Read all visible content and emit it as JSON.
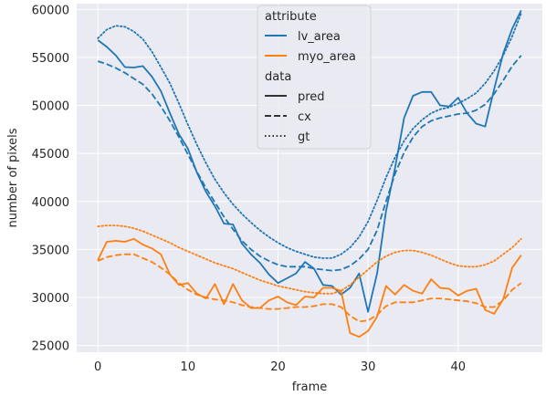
{
  "chart_data": {
    "type": "line",
    "xlabel": "frame",
    "ylabel": "number of pixels",
    "xlim": [
      -2.35,
      49.35
    ],
    "ylim": [
      24300,
      60600
    ],
    "xticks": [
      0,
      10,
      20,
      30,
      40
    ],
    "yticks": [
      25000,
      30000,
      35000,
      40000,
      45000,
      50000,
      55000,
      60000
    ],
    "grid": true,
    "background": "#eaeaf2",
    "legend": {
      "placement": "upper-center",
      "sections": [
        {
          "title": "attribute",
          "entries": [
            {
              "label": "lv_area",
              "color": "#1f77b4",
              "style": "solid"
            },
            {
              "label": "myo_area",
              "color": "#ff7f0e",
              "style": "solid"
            }
          ]
        },
        {
          "title": "data",
          "entries": [
            {
              "label": "pred",
              "color": "#333333",
              "style": "solid"
            },
            {
              "label": "cx",
              "color": "#333333",
              "style": "dashed"
            },
            {
              "label": "gt",
              "color": "#333333",
              "style": "dotted"
            }
          ]
        }
      ]
    },
    "x": [
      0,
      1,
      2,
      3,
      4,
      5,
      6,
      7,
      8,
      9,
      10,
      11,
      12,
      13,
      14,
      15,
      16,
      17,
      18,
      19,
      20,
      21,
      22,
      23,
      24,
      25,
      26,
      27,
      28,
      29,
      30,
      31,
      32,
      33,
      34,
      35,
      36,
      37,
      38,
      39,
      40,
      41,
      42,
      43,
      44,
      45,
      46,
      47
    ],
    "series": [
      {
        "attribute": "lv_area",
        "data": "pred",
        "color": "#1f77b4",
        "style": "solid",
        "values": [
          56800,
          56100,
          55200,
          54000,
          53950,
          54100,
          53000,
          51500,
          49200,
          47000,
          45500,
          43000,
          41000,
          39500,
          37700,
          37600,
          35600,
          34500,
          33600,
          32400,
          31500,
          32000,
          32500,
          33700,
          33000,
          31300,
          31200,
          30300,
          31000,
          32500,
          28500,
          32500,
          39000,
          43500,
          48700,
          51000,
          51400,
          51400,
          50000,
          49900,
          50800,
          49200,
          48100,
          47800,
          51700,
          55400,
          58000,
          59900
        ]
      },
      {
        "attribute": "lv_area",
        "data": "cx",
        "color": "#1f77b4",
        "style": "dashed",
        "values": [
          54600,
          54300,
          53900,
          53400,
          52800,
          52200,
          51200,
          49900,
          48400,
          46700,
          44900,
          43100,
          41400,
          39900,
          38400,
          37100,
          35900,
          35000,
          34300,
          33800,
          33400,
          33200,
          33200,
          33200,
          33000,
          32900,
          32800,
          32900,
          33300,
          34000,
          35000,
          37000,
          40000,
          42900,
          45100,
          46700,
          47800,
          48400,
          48700,
          48900,
          49100,
          49200,
          49500,
          50100,
          51200,
          52600,
          54100,
          55200
        ]
      },
      {
        "attribute": "lv_area",
        "data": "gt",
        "color": "#1f77b4",
        "style": "dotted",
        "values": [
          57000,
          57900,
          58300,
          58200,
          57700,
          56900,
          55600,
          54000,
          52300,
          50200,
          48000,
          45900,
          44000,
          42300,
          40900,
          39700,
          38700,
          37800,
          37000,
          36300,
          35700,
          35200,
          34800,
          34500,
          34200,
          34100,
          34100,
          34500,
          35200,
          36300,
          37900,
          40100,
          42500,
          44600,
          46300,
          47600,
          48500,
          49200,
          49600,
          49800,
          50200,
          50700,
          51300,
          52300,
          53600,
          55200,
          57200,
          59600
        ]
      },
      {
        "attribute": "myo_area",
        "data": "pred",
        "color": "#ff7f0e",
        "style": "solid",
        "values": [
          33900,
          35800,
          35900,
          35800,
          36100,
          35500,
          35100,
          34500,
          32400,
          31300,
          31500,
          30400,
          29900,
          31400,
          29300,
          31400,
          29700,
          28900,
          28900,
          29700,
          30100,
          29500,
          29200,
          30100,
          30000,
          31000,
          31000,
          30700,
          26300,
          25900,
          26500,
          28000,
          31200,
          30300,
          31300,
          30700,
          30400,
          31900,
          31000,
          30900,
          30200,
          30700,
          30900,
          28700,
          28300,
          29800,
          33100,
          34400
        ]
      },
      {
        "attribute": "myo_area",
        "data": "cx",
        "color": "#ff7f0e",
        "style": "dashed",
        "values": [
          33800,
          34200,
          34400,
          34500,
          34500,
          34100,
          33700,
          33100,
          32400,
          31500,
          30800,
          30300,
          30000,
          29800,
          29700,
          29500,
          29200,
          29000,
          28900,
          28800,
          28800,
          28900,
          29000,
          29000,
          29100,
          29300,
          29300,
          29000,
          28100,
          27500,
          27600,
          28200,
          29100,
          29500,
          29500,
          29500,
          29700,
          29900,
          29900,
          29800,
          29700,
          29600,
          29400,
          29000,
          29000,
          29700,
          30800,
          31500
        ]
      },
      {
        "attribute": "myo_area",
        "data": "gt",
        "color": "#ff7f0e",
        "style": "dotted",
        "values": [
          37400,
          37500,
          37500,
          37400,
          37200,
          36900,
          36500,
          36100,
          35700,
          35200,
          34800,
          34400,
          34000,
          33600,
          33300,
          33000,
          32600,
          32200,
          31800,
          31500,
          31200,
          31000,
          30800,
          30600,
          30500,
          30400,
          30400,
          30700,
          31300,
          32100,
          32900,
          33700,
          34300,
          34700,
          34900,
          34900,
          34700,
          34400,
          34000,
          33600,
          33300,
          33200,
          33200,
          33400,
          33800,
          34500,
          35200,
          36100
        ]
      }
    ]
  }
}
